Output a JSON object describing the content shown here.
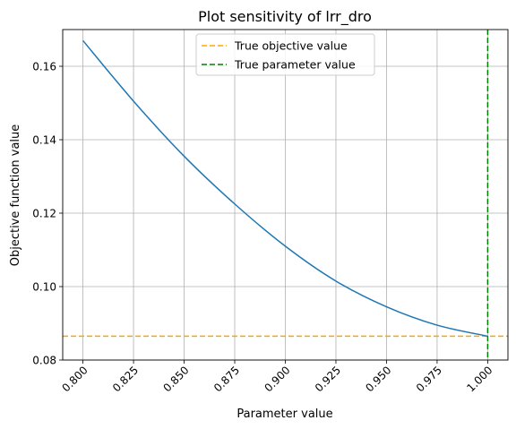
{
  "chart_data": {
    "type": "line",
    "title": "Plot sensitivity of lrr_dro",
    "xlabel": "Parameter value",
    "ylabel": "Objective function value",
    "xlim": [
      0.79,
      1.01
    ],
    "ylim": [
      0.08,
      0.17
    ],
    "xticks": [
      "0.800",
      "0.825",
      "0.850",
      "0.875",
      "0.900",
      "0.925",
      "0.950",
      "0.975",
      "1.000"
    ],
    "yticks": [
      "0.08",
      "0.10",
      "0.12",
      "0.14",
      "0.16"
    ],
    "grid": true,
    "legend_position": "upper center",
    "series": [
      {
        "color": "#1f77b4",
        "x": [
          0.8,
          0.825,
          0.85,
          0.875,
          0.9,
          0.925,
          0.95,
          0.975,
          1.0
        ],
        "y": [
          0.167,
          0.1505,
          0.1355,
          0.1225,
          0.111,
          0.1015,
          0.0945,
          0.0895,
          0.0865
        ]
      }
    ],
    "reference_lines": [
      {
        "name": "True objective value",
        "orientation": "horizontal",
        "value": 0.0865,
        "color": "#ffa500",
        "style": "dashed"
      },
      {
        "name": "True parameter value",
        "orientation": "vertical",
        "value": 1.0,
        "color": "#008000",
        "style": "dashed"
      }
    ]
  }
}
